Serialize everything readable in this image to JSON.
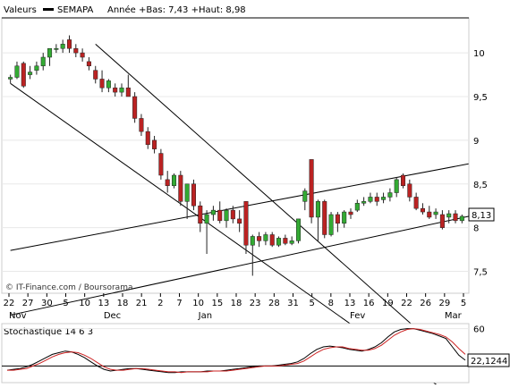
{
  "header": {
    "label": "Valeurs",
    "symbol": "SEMAPA",
    "range_text": "Année +Bas: 7,43 +Haut: 8,98"
  },
  "watermark": "© IT-Finance.com / Boursorama",
  "last_price_label": "8,13",
  "stoch_label": "Stochastique 14 6 3",
  "stoch_last_label": "22,1244",
  "colors": {
    "up": "#33aa33",
    "down": "#bb2222",
    "line": "#000000",
    "signal": "#cc2222",
    "grid": "#e8e8e8"
  },
  "chart_data": [
    {
      "type": "candlestick",
      "title": "SEMAPA",
      "ylim": [
        7.25,
        10.4
      ],
      "y_ticks": [
        7.5,
        8,
        8.5,
        9,
        9.5,
        10
      ],
      "y_tick_labels": [
        "7,5",
        "8",
        "8,5",
        "9",
        "9,5",
        "10"
      ],
      "x_tick_labels": [
        "22",
        "27",
        "30",
        "5",
        "10",
        "13",
        "18",
        "21",
        "2",
        "7",
        "10",
        "15",
        "18",
        "23",
        "28",
        "31",
        "5",
        "8",
        "13",
        "16",
        "19",
        "22",
        "26",
        "29",
        "5"
      ],
      "month_labels": [
        "Nov",
        "Dec",
        "Jan",
        "Fev",
        "Mar"
      ],
      "candles": [
        [
          9.7,
          9.75,
          9.65,
          9.72
        ],
        [
          9.72,
          9.9,
          9.7,
          9.85
        ],
        [
          9.88,
          9.9,
          9.6,
          9.62
        ],
        [
          9.75,
          9.85,
          9.7,
          9.78
        ],
        [
          9.8,
          9.9,
          9.75,
          9.85
        ],
        [
          9.85,
          10.0,
          9.8,
          9.95
        ],
        [
          9.95,
          10.05,
          9.85,
          10.05
        ],
        [
          10.05,
          10.1,
          10.0,
          10.05
        ],
        [
          10.05,
          10.15,
          10.0,
          10.1
        ],
        [
          10.15,
          10.2,
          10.0,
          10.05
        ],
        [
          10.05,
          10.1,
          9.95,
          10.0
        ],
        [
          10.0,
          10.05,
          9.9,
          9.95
        ],
        [
          9.9,
          9.95,
          9.8,
          9.85
        ],
        [
          9.8,
          9.85,
          9.65,
          9.7
        ],
        [
          9.7,
          9.8,
          9.55,
          9.6
        ],
        [
          9.6,
          9.7,
          9.55,
          9.68
        ],
        [
          9.6,
          9.65,
          9.5,
          9.55
        ],
        [
          9.55,
          9.65,
          9.5,
          9.6
        ],
        [
          9.6,
          9.75,
          9.5,
          9.5
        ],
        [
          9.5,
          9.55,
          9.2,
          9.25
        ],
        [
          9.25,
          9.3,
          9.05,
          9.1
        ],
        [
          9.1,
          9.15,
          8.9,
          8.95
        ],
        [
          9.0,
          9.05,
          8.85,
          8.9
        ],
        [
          8.85,
          8.9,
          8.55,
          8.6
        ],
        [
          8.55,
          8.65,
          8.4,
          8.48
        ],
        [
          8.48,
          8.62,
          8.45,
          8.6
        ],
        [
          8.6,
          8.65,
          8.25,
          8.3
        ],
        [
          8.3,
          8.5,
          8.1,
          8.5
        ],
        [
          8.5,
          8.55,
          8.2,
          8.25
        ],
        [
          8.25,
          8.3,
          7.95,
          8.05
        ],
        [
          8.05,
          8.2,
          7.7,
          8.15
        ],
        [
          8.15,
          8.25,
          8.08,
          8.2
        ],
        [
          8.2,
          8.3,
          8.05,
          8.08
        ],
        [
          8.08,
          8.22,
          8.0,
          8.2
        ],
        [
          8.2,
          8.25,
          8.05,
          8.1
        ],
        [
          8.1,
          8.2,
          7.95,
          8.05
        ],
        [
          8.3,
          8.3,
          7.7,
          7.8
        ],
        [
          7.8,
          7.92,
          7.45,
          7.9
        ],
        [
          7.9,
          7.95,
          7.78,
          7.85
        ],
        [
          7.85,
          7.95,
          7.8,
          7.92
        ],
        [
          7.92,
          7.95,
          7.78,
          7.8
        ],
        [
          7.8,
          7.9,
          7.78,
          7.88
        ],
        [
          7.88,
          7.92,
          7.8,
          7.82
        ],
        [
          7.82,
          7.9,
          7.8,
          7.85
        ],
        [
          7.85,
          8.1,
          7.82,
          8.1
        ],
        [
          8.3,
          8.45,
          8.2,
          8.42
        ],
        [
          8.78,
          8.78,
          8.05,
          8.12
        ],
        [
          8.12,
          8.32,
          7.85,
          8.3
        ],
        [
          8.3,
          8.32,
          7.88,
          7.92
        ],
        [
          7.92,
          8.18,
          7.9,
          8.15
        ],
        [
          8.15,
          8.18,
          7.95,
          8.05
        ],
        [
          8.05,
          8.2,
          8.0,
          8.18
        ],
        [
          8.18,
          8.22,
          8.1,
          8.15
        ],
        [
          8.2,
          8.32,
          8.18,
          8.28
        ],
        [
          8.28,
          8.35,
          8.25,
          8.3
        ],
        [
          8.3,
          8.4,
          8.28,
          8.35
        ],
        [
          8.35,
          8.4,
          8.25,
          8.3
        ],
        [
          8.32,
          8.4,
          8.28,
          8.35
        ],
        [
          8.35,
          8.45,
          8.3,
          8.4
        ],
        [
          8.4,
          8.58,
          8.35,
          8.55
        ],
        [
          8.6,
          8.62,
          8.45,
          8.48
        ],
        [
          8.5,
          8.55,
          8.3,
          8.35
        ],
        [
          8.35,
          8.4,
          8.2,
          8.22
        ],
        [
          8.22,
          8.28,
          8.15,
          8.18
        ],
        [
          8.18,
          8.25,
          8.1,
          8.12
        ],
        [
          8.15,
          8.22,
          8.1,
          8.18
        ],
        [
          8.15,
          8.2,
          7.98,
          8.0
        ],
        [
          8.12,
          8.2,
          8.05,
          8.16
        ],
        [
          8.16,
          8.2,
          8.05,
          8.08
        ],
        [
          8.08,
          8.15,
          8.05,
          8.13
        ]
      ],
      "trend_lines": [
        [
          [
            0,
            9.65
          ],
          [
            68,
            6.05
          ]
        ],
        [
          [
            13,
            10.1
          ],
          [
            68,
            6.45
          ]
        ],
        [
          [
            0,
            7.74
          ],
          [
            70,
            8.73
          ]
        ],
        [
          [
            0,
            7.0
          ],
          [
            70,
            8.13
          ]
        ]
      ]
    },
    {
      "type": "line",
      "title": "Stochastique 14 6 3",
      "ylim": [
        -5,
        66
      ],
      "y_ticks": [
        60
      ],
      "y_tick_labels": [
        "60"
      ],
      "level_line": 15,
      "series": [
        {
          "values": [
            10,
            11,
            12,
            14,
            17,
            21,
            25,
            29,
            31,
            33,
            32,
            29,
            25,
            20,
            15,
            11,
            9,
            10,
            11,
            12,
            12,
            11,
            10,
            9,
            8,
            7,
            7,
            8,
            8,
            8,
            8,
            9,
            9,
            9,
            10,
            11,
            12,
            13,
            14,
            15,
            15,
            15,
            16,
            17,
            18,
            20,
            24,
            30,
            35,
            38,
            39,
            38,
            37,
            35,
            34,
            33,
            35,
            38,
            43,
            50,
            56,
            59,
            60,
            60,
            58,
            56,
            54,
            51,
            48,
            38,
            28,
            22
          ]
        },
        {
          "values": [
            10,
            10,
            11,
            12,
            15,
            18,
            22,
            26,
            29,
            31,
            32,
            31,
            28,
            24,
            19,
            14,
            11,
            10,
            10,
            11,
            12,
            12,
            11,
            10,
            9,
            8,
            8,
            7,
            8,
            8,
            8,
            8,
            9,
            9,
            9,
            10,
            11,
            12,
            13,
            14,
            15,
            15,
            15,
            16,
            17,
            18,
            21,
            26,
            31,
            35,
            37,
            38,
            38,
            36,
            35,
            34,
            34,
            36,
            40,
            46,
            52,
            56,
            59,
            60,
            59,
            57,
            55,
            53,
            50,
            44,
            36,
            29
          ]
        }
      ]
    }
  ]
}
